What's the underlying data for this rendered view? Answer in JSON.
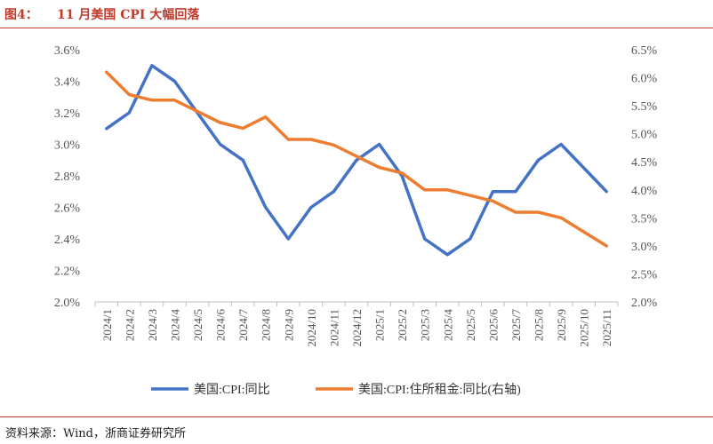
{
  "header": {
    "figure_label": "图4：",
    "title": "11 月美国 CPI 大幅回落"
  },
  "footer": {
    "source": "资料来源：Wind，浙商证券研究所"
  },
  "chart_data": {
    "type": "line",
    "categories": [
      "2024/1",
      "2024/2",
      "2024/3",
      "2024/4",
      "2024/5",
      "2024/6",
      "2024/7",
      "2024/8",
      "2024/9",
      "2024/10",
      "2024/11",
      "2024/12",
      "2025/1",
      "2025/2",
      "2025/3",
      "2025/4",
      "2025/5",
      "2025/6",
      "2025/7",
      "2025/8",
      "2025/9",
      "2025/10",
      "2025/11"
    ],
    "y_left": {
      "ticks": [
        "2.0%",
        "2.2%",
        "2.4%",
        "2.6%",
        "2.8%",
        "3.0%",
        "3.2%",
        "3.4%",
        "3.6%"
      ],
      "ylim": [
        2.0,
        3.6
      ]
    },
    "y_right": {
      "ticks": [
        "2.0%",
        "2.5%",
        "3.0%",
        "3.5%",
        "4.0%",
        "4.5%",
        "5.0%",
        "5.5%",
        "6.0%",
        "6.5%"
      ],
      "ylim": [
        2.0,
        6.5
      ]
    },
    "series": [
      {
        "name": "美国:CPI:同比",
        "axis": "left",
        "color": "#4472C4",
        "values": [
          3.1,
          3.2,
          3.5,
          3.4,
          3.2,
          3.0,
          2.9,
          2.6,
          2.4,
          2.6,
          2.7,
          2.9,
          3.0,
          2.8,
          2.4,
          2.3,
          2.4,
          2.7,
          2.7,
          2.9,
          3.0,
          2.85,
          2.7
        ]
      },
      {
        "name": "美国:CPI:住所租金:同比(右轴)",
        "axis": "right",
        "color": "#ED7D31",
        "values": [
          6.1,
          5.7,
          5.6,
          5.6,
          5.4,
          5.2,
          5.1,
          5.3,
          4.9,
          4.9,
          4.8,
          4.6,
          4.4,
          4.3,
          4.0,
          4.0,
          3.9,
          3.8,
          3.6,
          3.6,
          3.5,
          3.25,
          3.0
        ]
      }
    ],
    "grid": false,
    "legend_position": "bottom"
  }
}
